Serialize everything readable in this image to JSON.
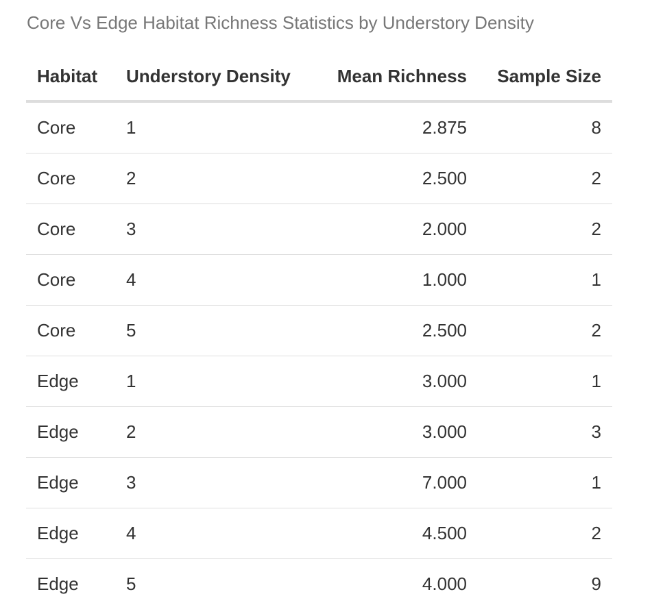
{
  "caption": "Core Vs Edge Habitat Richness Statistics by Understory Density",
  "table": {
    "columns": [
      "Habitat",
      "Understory Density",
      "Mean Richness",
      "Sample Size"
    ],
    "rows": [
      [
        "Core",
        "1",
        "2.875",
        "8"
      ],
      [
        "Core",
        "2",
        "2.500",
        "2"
      ],
      [
        "Core",
        "3",
        "2.000",
        "2"
      ],
      [
        "Core",
        "4",
        "1.000",
        "1"
      ],
      [
        "Core",
        "5",
        "2.500",
        "2"
      ],
      [
        "Edge",
        "1",
        "3.000",
        "1"
      ],
      [
        "Edge",
        "2",
        "3.000",
        "3"
      ],
      [
        "Edge",
        "3",
        "7.000",
        "1"
      ],
      [
        "Edge",
        "4",
        "4.500",
        "2"
      ],
      [
        "Edge",
        "5",
        "4.000",
        "9"
      ]
    ]
  },
  "colors": {
    "caption_text": "#777777",
    "body_text": "#333333",
    "rule": "#dddddd"
  }
}
